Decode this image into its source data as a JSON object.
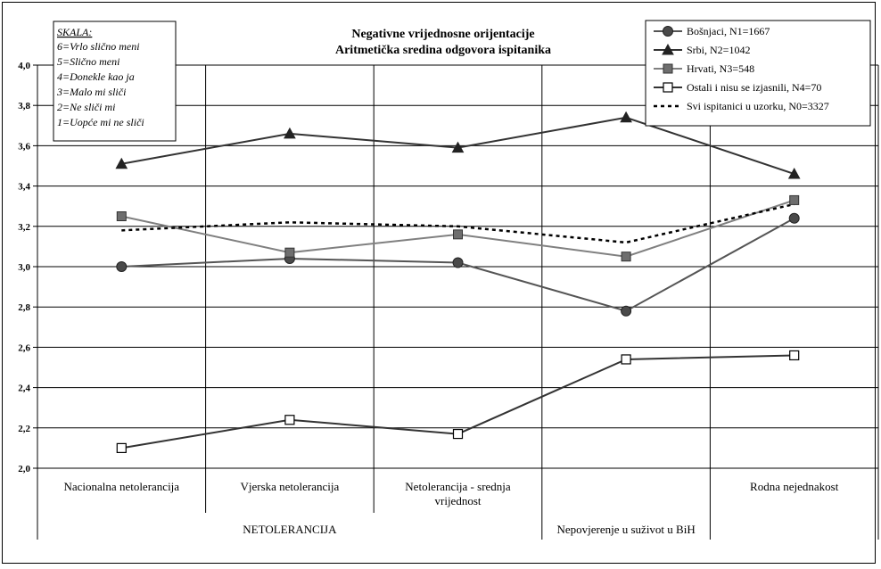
{
  "chart_data": {
    "type": "line",
    "title": "Negativne vrijednosne orijentacije",
    "subtitle": "Aritmetička sredina odgovora ispitanika",
    "categories": [
      "Nacionalna netolerancija",
      "Vjerska netolerancija",
      "Netolerancija - srednja vrijednost",
      "Nepovjerenje u suživot u BiH",
      "Rodna nejednakost"
    ],
    "category_label_lines": [
      [
        "Nacionalna netolerancija"
      ],
      [
        "Vjerska netolerancija"
      ],
      [
        "Netolerancija - srednja",
        "vrijednost"
      ],
      [
        "Nepovjerenje u suživot u BiH"
      ],
      [
        "Rodna nejednakost"
      ]
    ],
    "groups": [
      {
        "label": "NETOLERANCIJA",
        "span": [
          0,
          2
        ]
      },
      {
        "label": "Nepovjerenje u suživot u BiH",
        "span": [
          3,
          3
        ]
      },
      {
        "label": "Rodna nejednakost",
        "span": [
          4,
          4
        ]
      }
    ],
    "ylim": [
      2.0,
      4.0
    ],
    "yticks": [
      "2,0",
      "2,2",
      "2,4",
      "2,6",
      "2,8",
      "3,0",
      "3,2",
      "3,4",
      "3,6",
      "3,8",
      "4,0"
    ],
    "ytick_values": [
      2.0,
      2.2,
      2.4,
      2.6,
      2.8,
      3.0,
      3.2,
      3.4,
      3.6,
      3.8,
      4.0
    ],
    "grid": true,
    "legend_position": "top-right",
    "series": [
      {
        "name": "Bošnjaci, N1=1667",
        "values": [
          3.0,
          3.04,
          3.02,
          2.78,
          3.24
        ],
        "color": "#555555",
        "marker": "circle",
        "dash": false
      },
      {
        "name": "Srbi, N2=1042",
        "values": [
          3.51,
          3.66,
          3.59,
          3.74,
          3.46
        ],
        "color": "#333333",
        "marker": "triangle",
        "dash": false
      },
      {
        "name": "Hrvati, N3=548",
        "values": [
          3.25,
          3.07,
          3.16,
          3.05,
          3.33
        ],
        "color": "#808080",
        "marker": "square-gray",
        "dash": false
      },
      {
        "name": "Ostali i nisu se izjasnili, N4=70",
        "values": [
          2.1,
          2.24,
          2.17,
          2.54,
          2.56
        ],
        "color": "#333333",
        "marker": "square-open",
        "dash": false
      },
      {
        "name": "Svi ispitanici u uzorku, N0=3327",
        "values": [
          3.18,
          3.22,
          3.2,
          3.12,
          3.31
        ],
        "color": "#000000",
        "marker": "none",
        "dash": true
      }
    ]
  },
  "scale_box": {
    "title": "SKALA:",
    "items": [
      "6=Vrlo slično meni",
      "5=Slično meni",
      "4=Donekle kao ja",
      "3=Malo mi sliči",
      "2=Ne sliči mi",
      "1=Uopće mi ne sliči"
    ]
  }
}
